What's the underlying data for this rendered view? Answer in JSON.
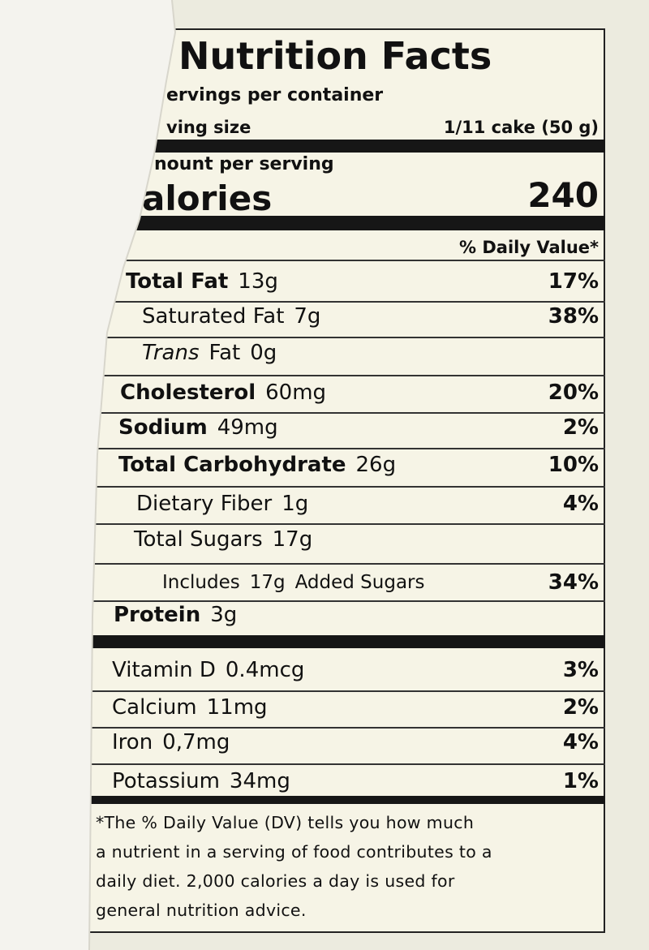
{
  "header": {
    "title": "Nutrition Facts",
    "servings": "ervings per container",
    "serving_size_label": "ving size",
    "serving_size": "1/11 cake (50 g)"
  },
  "calories": {
    "amount_label": "nount per serving",
    "label": "alories",
    "value": "240"
  },
  "dv_header": "% Daily Value*",
  "nutrients": [
    {
      "name": "Total Fat",
      "amount": "13g",
      "dv": "17%"
    },
    {
      "name": "Saturated Fat",
      "amount": "7g",
      "dv": "38%"
    },
    {
      "name_italic": "Trans",
      "name": "Fat",
      "amount": "0g"
    },
    {
      "name": "Cholesterol",
      "amount": "60mg",
      "dv": "20%"
    },
    {
      "name": "Sodium",
      "amount": "49mg",
      "dv": "2%"
    },
    {
      "name": "Total Carbohydrate",
      "amount": "26g",
      "dv": "10%"
    },
    {
      "name": "Dietary Fiber",
      "amount": "1g",
      "dv": "4%"
    },
    {
      "name": "Total Sugars",
      "amount": "17g"
    },
    {
      "name": "Includes",
      "amount": "17g",
      "name_after": "Added Sugars",
      "dv": "34%"
    },
    {
      "name": "Protein",
      "amount": "3g"
    }
  ],
  "vitamins": [
    {
      "name": "Vitamin D",
      "amount": "0.4mcg",
      "dv": "3%"
    },
    {
      "name": "Calcium",
      "amount": "11mg",
      "dv": "2%"
    },
    {
      "name": "Iron",
      "amount": "0,7mg",
      "dv": "4%"
    },
    {
      "name": "Potassium",
      "amount": "34mg",
      "dv": "1%"
    }
  ],
  "footnote": [
    "*The % Daily Value (DV) tells you how much",
    "a nutrient in a serving of food contributes to a",
    "daily diet. 2,000 calories a day is used for",
    "general nutrition advice."
  ]
}
